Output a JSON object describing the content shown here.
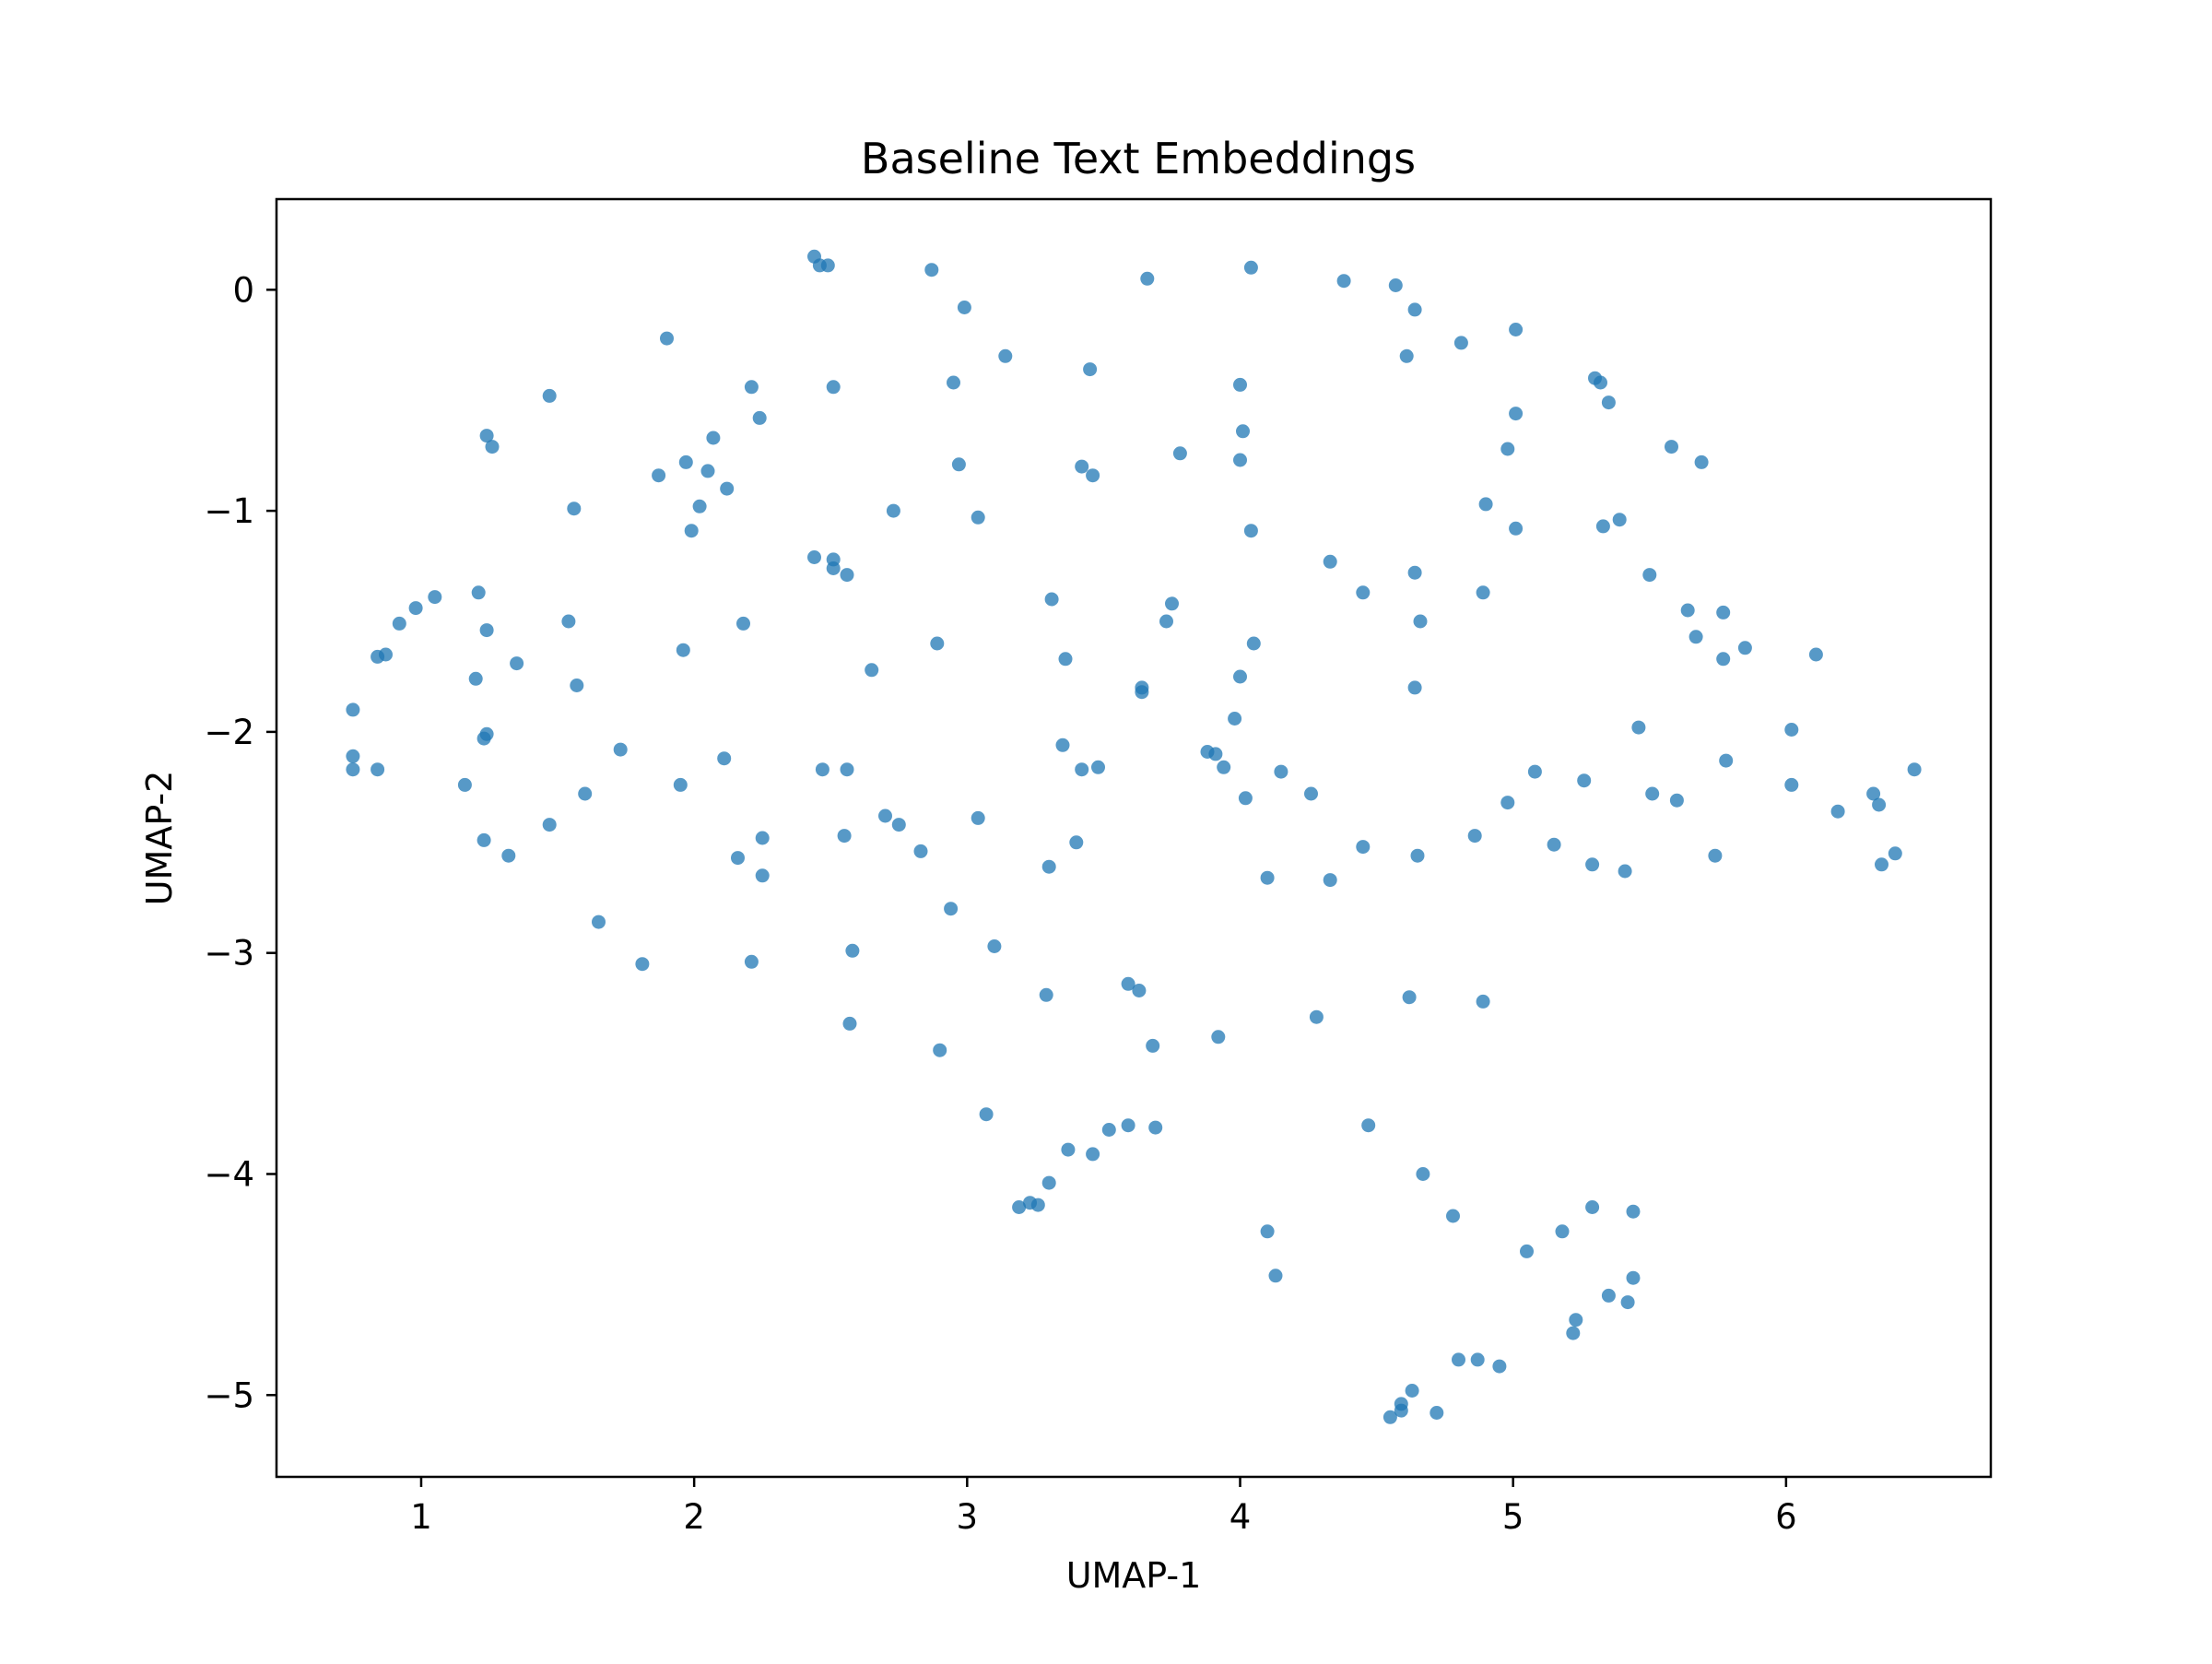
{
  "chart_data": {
    "type": "scatter",
    "title": "Baseline Text Embeddings",
    "xlabel": "UMAP-1",
    "ylabel": "UMAP-2",
    "xlim": [
      0.47,
      6.75
    ],
    "ylim": [
      -5.37,
      0.41
    ],
    "xticks": [
      1,
      2,
      3,
      4,
      5,
      6
    ],
    "xtick_labels": [
      "1",
      "2",
      "3",
      "4",
      "5",
      "6"
    ],
    "yticks": [
      0,
      -1,
      -2,
      -3,
      -4,
      -5
    ],
    "ytick_labels": [
      "0",
      "−1",
      "−2",
      "−3",
      "−4",
      "−5"
    ],
    "grid": false,
    "colors": {
      "marker": "#1f77b4",
      "marker_opacity": 0.75
    },
    "series": [
      {
        "points": [
          [
            2.44,
            0.15
          ],
          [
            2.46,
            0.11
          ],
          [
            2.49,
            0.11
          ],
          [
            2.87,
            0.09
          ],
          [
            4.04,
            0.1
          ],
          [
            3.66,
            0.05
          ],
          [
            4.38,
            0.04
          ],
          [
            4.57,
            0.02
          ],
          [
            2.99,
            -0.08
          ],
          [
            4.64,
            -0.09
          ],
          [
            1.9,
            -0.22
          ],
          [
            4.81,
            -0.24
          ],
          [
            5.01,
            -0.18
          ],
          [
            3.14,
            -0.3
          ],
          [
            4.61,
            -0.3
          ],
          [
            3.45,
            -0.36
          ],
          [
            5.3,
            -0.4
          ],
          [
            5.32,
            -0.42
          ],
          [
            2.21,
            -0.44
          ],
          [
            2.51,
            -0.44
          ],
          [
            2.95,
            -0.42
          ],
          [
            4.0,
            -0.43
          ],
          [
            1.47,
            -0.48
          ],
          [
            5.35,
            -0.51
          ],
          [
            2.24,
            -0.58
          ],
          [
            5.01,
            -0.56
          ],
          [
            1.24,
            -0.66
          ],
          [
            1.26,
            -0.71
          ],
          [
            2.07,
            -0.67
          ],
          [
            4.01,
            -0.64
          ],
          [
            5.58,
            -0.71
          ],
          [
            4.98,
            -0.72
          ],
          [
            1.97,
            -0.78
          ],
          [
            2.05,
            -0.82
          ],
          [
            2.97,
            -0.79
          ],
          [
            3.42,
            -0.8
          ],
          [
            3.46,
            -0.84
          ],
          [
            3.78,
            -0.74
          ],
          [
            4.0,
            -0.77
          ],
          [
            5.69,
            -0.78
          ],
          [
            1.87,
            -0.84
          ],
          [
            2.12,
            -0.9
          ],
          [
            2.02,
            -0.98
          ],
          [
            1.56,
            -0.99
          ],
          [
            2.73,
            -1.0
          ],
          [
            3.04,
            -1.03
          ],
          [
            1.99,
            -1.09
          ],
          [
            4.04,
            -1.09
          ],
          [
            4.9,
            -0.97
          ],
          [
            5.01,
            -1.08
          ],
          [
            5.33,
            -1.07
          ],
          [
            5.39,
            -1.04
          ],
          [
            2.44,
            -1.21
          ],
          [
            2.51,
            -1.22
          ],
          [
            2.51,
            -1.26
          ],
          [
            2.56,
            -1.29
          ],
          [
            4.33,
            -1.23
          ],
          [
            4.64,
            -1.28
          ],
          [
            5.5,
            -1.29
          ],
          [
            4.45,
            -1.37
          ],
          [
            4.89,
            -1.37
          ],
          [
            3.31,
            -1.4
          ],
          [
            1.21,
            -1.37
          ],
          [
            1.05,
            -1.39
          ],
          [
            0.98,
            -1.44
          ],
          [
            0.92,
            -1.51
          ],
          [
            1.54,
            -1.5
          ],
          [
            2.18,
            -1.51
          ],
          [
            3.75,
            -1.42
          ],
          [
            3.73,
            -1.5
          ],
          [
            4.66,
            -1.5
          ],
          [
            5.64,
            -1.45
          ],
          [
            5.77,
            -1.46
          ],
          [
            1.24,
            -1.54
          ],
          [
            0.87,
            -1.65
          ],
          [
            0.84,
            -1.66
          ],
          [
            1.96,
            -1.63
          ],
          [
            2.89,
            -1.6
          ],
          [
            3.36,
            -1.67
          ],
          [
            4.05,
            -1.6
          ],
          [
            5.67,
            -1.57
          ],
          [
            5.85,
            -1.62
          ],
          [
            5.77,
            -1.67
          ],
          [
            6.11,
            -1.65
          ],
          [
            1.35,
            -1.69
          ],
          [
            2.65,
            -1.72
          ],
          [
            1.2,
            -1.76
          ],
          [
            1.57,
            -1.79
          ],
          [
            3.64,
            -1.8
          ],
          [
            3.64,
            -1.82
          ],
          [
            4.0,
            -1.75
          ],
          [
            4.64,
            -1.8
          ],
          [
            0.75,
            -1.9
          ],
          [
            3.98,
            -1.94
          ],
          [
            5.46,
            -1.98
          ],
          [
            6.02,
            -1.99
          ],
          [
            1.24,
            -2.01
          ],
          [
            1.23,
            -2.03
          ],
          [
            1.73,
            -2.08
          ],
          [
            3.35,
            -2.06
          ],
          [
            3.88,
            -2.09
          ],
          [
            3.91,
            -2.1
          ],
          [
            2.11,
            -2.12
          ],
          [
            3.94,
            -2.16
          ],
          [
            3.42,
            -2.17
          ],
          [
            3.48,
            -2.16
          ],
          [
            2.47,
            -2.17
          ],
          [
            2.56,
            -2.17
          ],
          [
            4.15,
            -2.18
          ],
          [
            5.08,
            -2.18
          ],
          [
            5.78,
            -2.13
          ],
          [
            6.47,
            -2.17
          ],
          [
            0.75,
            -2.11
          ],
          [
            0.75,
            -2.17
          ],
          [
            0.84,
            -2.17
          ],
          [
            1.16,
            -2.24
          ],
          [
            1.95,
            -2.24
          ],
          [
            1.6,
            -2.28
          ],
          [
            4.02,
            -2.3
          ],
          [
            4.26,
            -2.28
          ],
          [
            4.98,
            -2.32
          ],
          [
            5.26,
            -2.22
          ],
          [
            5.51,
            -2.28
          ],
          [
            5.6,
            -2.31
          ],
          [
            6.02,
            -2.24
          ],
          [
            6.32,
            -2.28
          ],
          [
            6.34,
            -2.33
          ],
          [
            6.19,
            -2.36
          ],
          [
            2.7,
            -2.38
          ],
          [
            2.75,
            -2.42
          ],
          [
            3.04,
            -2.39
          ],
          [
            1.47,
            -2.42
          ],
          [
            2.55,
            -2.47
          ],
          [
            2.25,
            -2.48
          ],
          [
            1.23,
            -2.49
          ],
          [
            3.4,
            -2.5
          ],
          [
            4.45,
            -2.52
          ],
          [
            4.86,
            -2.47
          ],
          [
            5.15,
            -2.51
          ],
          [
            2.83,
            -2.54
          ],
          [
            1.32,
            -2.56
          ],
          [
            2.16,
            -2.57
          ],
          [
            4.65,
            -2.56
          ],
          [
            5.74,
            -2.56
          ],
          [
            6.4,
            -2.55
          ],
          [
            6.35,
            -2.6
          ],
          [
            5.29,
            -2.6
          ],
          [
            5.41,
            -2.63
          ],
          [
            3.3,
            -2.61
          ],
          [
            2.25,
            -2.65
          ],
          [
            4.1,
            -2.66
          ],
          [
            4.33,
            -2.67
          ],
          [
            2.94,
            -2.8
          ],
          [
            1.65,
            -2.86
          ],
          [
            3.1,
            -2.97
          ],
          [
            2.58,
            -2.99
          ],
          [
            1.81,
            -3.05
          ],
          [
            2.21,
            -3.04
          ],
          [
            3.59,
            -3.14
          ],
          [
            3.63,
            -3.17
          ],
          [
            3.29,
            -3.19
          ],
          [
            4.62,
            -3.2
          ],
          [
            4.89,
            -3.22
          ],
          [
            4.28,
            -3.29
          ],
          [
            2.57,
            -3.32
          ],
          [
            3.92,
            -3.38
          ],
          [
            3.68,
            -3.42
          ],
          [
            2.9,
            -3.44
          ],
          [
            3.07,
            -3.73
          ],
          [
            3.59,
            -3.78
          ],
          [
            3.52,
            -3.8
          ],
          [
            3.69,
            -3.79
          ],
          [
            4.47,
            -3.78
          ],
          [
            3.37,
            -3.89
          ],
          [
            3.46,
            -3.91
          ],
          [
            4.67,
            -4.0
          ],
          [
            3.3,
            -4.04
          ],
          [
            3.23,
            -4.13
          ],
          [
            3.19,
            -4.15
          ],
          [
            3.26,
            -4.14
          ],
          [
            4.78,
            -4.19
          ],
          [
            5.29,
            -4.15
          ],
          [
            5.44,
            -4.17
          ],
          [
            4.1,
            -4.26
          ],
          [
            5.18,
            -4.26
          ],
          [
            5.05,
            -4.35
          ],
          [
            4.13,
            -4.46
          ],
          [
            5.44,
            -4.47
          ],
          [
            5.35,
            -4.55
          ],
          [
            5.42,
            -4.58
          ],
          [
            5.23,
            -4.66
          ],
          [
            5.22,
            -4.72
          ],
          [
            4.8,
            -4.84
          ],
          [
            4.87,
            -4.84
          ],
          [
            4.95,
            -4.87
          ],
          [
            4.63,
            -4.98
          ],
          [
            4.59,
            -5.04
          ],
          [
            4.59,
            -5.07
          ],
          [
            4.55,
            -5.1
          ],
          [
            4.72,
            -5.08
          ]
        ]
      }
    ]
  }
}
